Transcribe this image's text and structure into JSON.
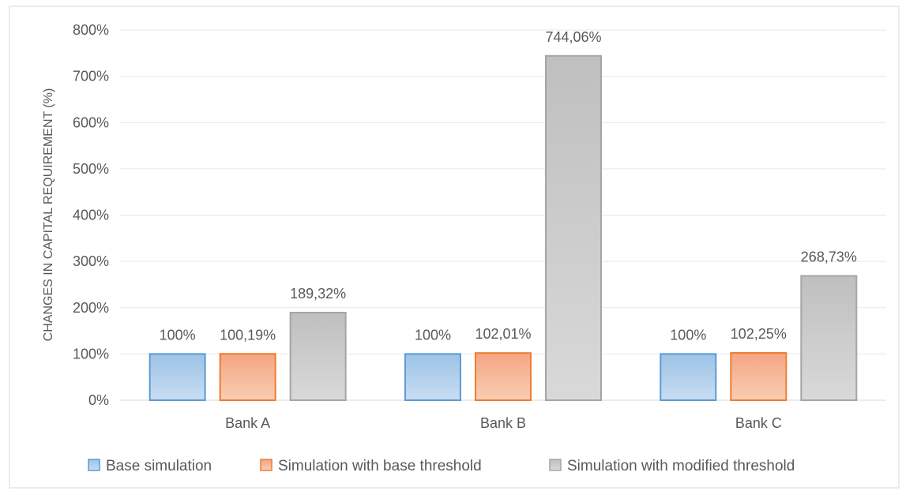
{
  "chart_data": {
    "type": "bar",
    "ylabel": "CHANGES IN CAPITAL REQUIREMENT (%)",
    "ylim": [
      0,
      800
    ],
    "yticks": [
      0,
      100,
      200,
      300,
      400,
      500,
      600,
      700,
      800
    ],
    "ytick_labels": [
      "0%",
      "100%",
      "200%",
      "300%",
      "400%",
      "500%",
      "600%",
      "700%",
      "800%"
    ],
    "categories": [
      "Bank A",
      "Bank B",
      "Bank C"
    ],
    "grid": true,
    "legend_position": "bottom",
    "series": [
      {
        "name": "Base simulation",
        "values": [
          100,
          100,
          100
        ],
        "labels": [
          "100%",
          "100%",
          "100%"
        ],
        "color": "#9DC3E6",
        "color_light": "#C9DDF2",
        "border": "#5B9BD5"
      },
      {
        "name": "Simulation with base threshold",
        "values": [
          100.19,
          102.01,
          102.25
        ],
        "labels": [
          "100,19%",
          "102,01%",
          "102,25%"
        ],
        "color": "#F4A582",
        "color_light": "#F9CDB3",
        "border": "#ED7D31"
      },
      {
        "name": "Simulation with modified threshold",
        "values": [
          189.32,
          744.06,
          268.73
        ],
        "labels": [
          "189,32%",
          "744,06%",
          "268,73%"
        ],
        "color": "#BFBFBF",
        "color_light": "#D9D9D9",
        "border": "#A5A5A5"
      }
    ]
  }
}
